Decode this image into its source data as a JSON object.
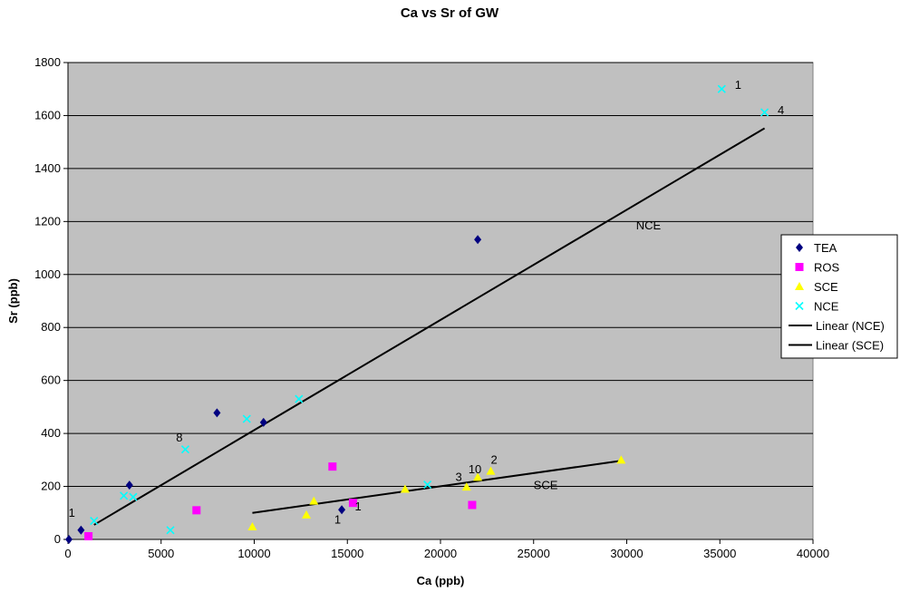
{
  "chart_data": {
    "type": "scatter",
    "title": "Ca vs Sr of GW",
    "xlabel": "Ca (ppb)",
    "ylabel": "Sr (ppb)",
    "xlim": [
      0,
      40000
    ],
    "ylim": [
      0,
      1800
    ],
    "xticks": [
      "0",
      "5000",
      "10000",
      "15000",
      "20000",
      "25000",
      "30000",
      "35000",
      "40000"
    ],
    "yticks": [
      "0",
      "200",
      "400",
      "600",
      "800",
      "1000",
      "1200",
      "1400",
      "1600",
      "1800"
    ],
    "grid": "horizontal",
    "plot_background": "#c0c0c0",
    "legend_position": "right",
    "series": [
      {
        "name": "TEA",
        "marker": "diamond",
        "color": "#000080",
        "points": [
          [
            50,
            0
          ],
          [
            700,
            35
          ],
          [
            3300,
            205
          ],
          [
            8000,
            478
          ],
          [
            10500,
            442
          ],
          [
            14700,
            112
          ],
          [
            22000,
            1132
          ]
        ]
      },
      {
        "name": "ROS",
        "marker": "square",
        "color": "#ff00ff",
        "points": [
          [
            1100,
            12
          ],
          [
            6900,
            110
          ],
          [
            14200,
            275
          ],
          [
            15300,
            138
          ],
          [
            21700,
            130
          ]
        ]
      },
      {
        "name": "SCE",
        "marker": "triangle",
        "color": "#ffff00",
        "points": [
          [
            9900,
            48
          ],
          [
            12800,
            93
          ],
          [
            13200,
            145
          ],
          [
            18100,
            190
          ],
          [
            21400,
            198
          ],
          [
            22000,
            235
          ],
          [
            22700,
            258
          ],
          [
            29700,
            300
          ]
        ]
      },
      {
        "name": "NCE",
        "marker": "x",
        "color": "#00ffff",
        "points": [
          [
            1400,
            70
          ],
          [
            3000,
            165
          ],
          [
            3500,
            160
          ],
          [
            5500,
            35
          ],
          [
            6300,
            340
          ],
          [
            9600,
            455
          ],
          [
            12400,
            530
          ],
          [
            19300,
            207
          ],
          [
            35100,
            1700
          ],
          [
            37400,
            1612
          ]
        ]
      }
    ],
    "trendlines": [
      {
        "name": "Linear (NCE)",
        "x": [
          1400,
          37400
        ],
        "y": [
          55,
          1552
        ],
        "label": "NCE",
        "label_at": [
          30500,
          1170
        ]
      },
      {
        "name": "Linear (SCE)",
        "x": [
          9900,
          29700
        ],
        "y": [
          100,
          297
        ],
        "label": "SCE",
        "label_at": [
          25000,
          190
        ]
      }
    ],
    "annotations": [
      {
        "text": "1",
        "x": 35800,
        "y": 1700
      },
      {
        "text": "4",
        "x": 38100,
        "y": 1605
      },
      {
        "text": "8",
        "x": 5800,
        "y": 370
      },
      {
        "text": "1",
        "x": 30,
        "y": 85
      },
      {
        "text": "1",
        "x": 14300,
        "y": 60
      },
      {
        "text": "1",
        "x": 15400,
        "y": 110
      },
      {
        "text": "3",
        "x": 20800,
        "y": 220
      },
      {
        "text": "10",
        "x": 21500,
        "y": 250
      },
      {
        "text": "2",
        "x": 22700,
        "y": 285
      }
    ]
  }
}
